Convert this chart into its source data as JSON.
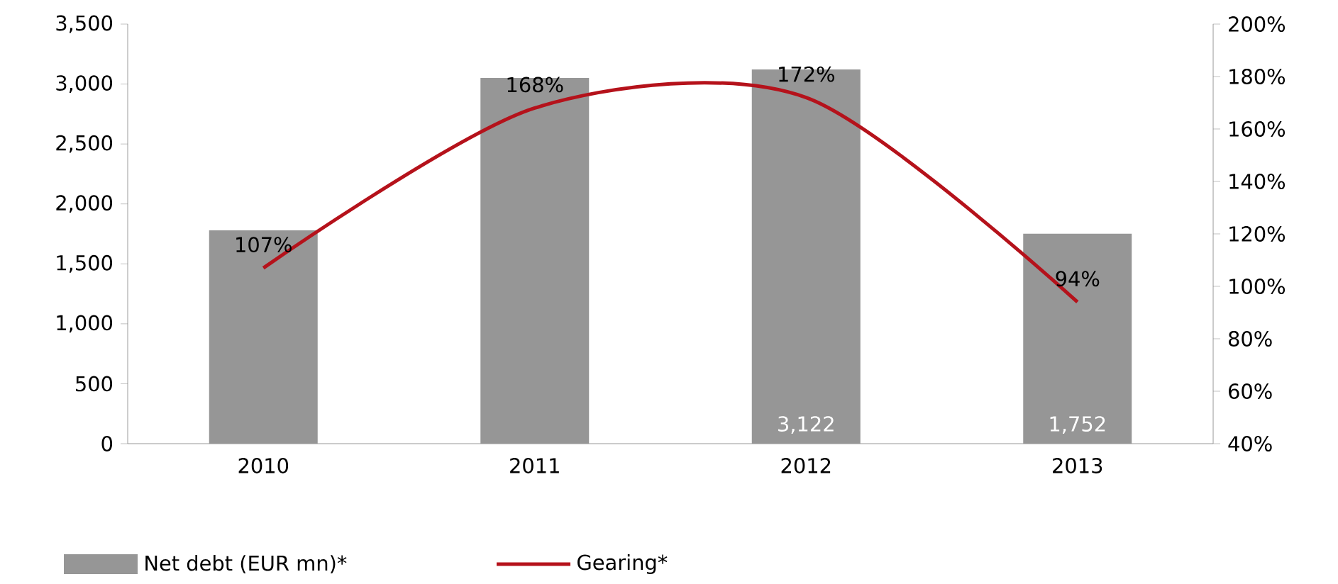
{
  "chart_data": {
    "type": "bar",
    "categories": [
      "2010",
      "2011",
      "2012",
      "2013"
    ],
    "series": [
      {
        "name": "Net debt (EUR mn)*",
        "color": "#969696",
        "values": [
          1780,
          3050,
          3122,
          1752
        ],
        "value_labels": [
          null,
          null,
          "3,122",
          "1,752"
        ]
      },
      {
        "name": "Gearing*",
        "type": "line",
        "axis": "y2",
        "color": "#b5121b",
        "values": [
          107,
          168,
          172,
          94
        ],
        "value_labels": [
          "107%",
          "168%",
          "172%",
          "94%"
        ]
      }
    ],
    "ylim": [
      0,
      3500
    ],
    "yticks": [
      0,
      500,
      {
        "value": 1000,
        "label": "1,000"
      },
      {
        "value": 1500,
        "label": "1,500"
      },
      {
        "value": 2000,
        "label": "2,000"
      },
      {
        "value": 2500,
        "label": "2,500"
      },
      {
        "value": 3000,
        "label": "3,000"
      },
      {
        "value": 3500,
        "label": "3,500"
      }
    ],
    "y2lim": [
      40,
      200
    ],
    "y2ticks": [
      {
        "value": 40,
        "label": "40%"
      },
      {
        "value": 60,
        "label": "60%"
      },
      {
        "value": 80,
        "label": "80%"
      },
      {
        "value": 100,
        "label": "100%"
      },
      {
        "value": 120,
        "label": "120%"
      },
      {
        "value": 140,
        "label": "140%"
      },
      {
        "value": 160,
        "label": "160%"
      },
      {
        "value": 180,
        "label": "180%"
      },
      {
        "value": 200,
        "label": "200%"
      }
    ],
    "grid": false,
    "legend": "bottom"
  }
}
